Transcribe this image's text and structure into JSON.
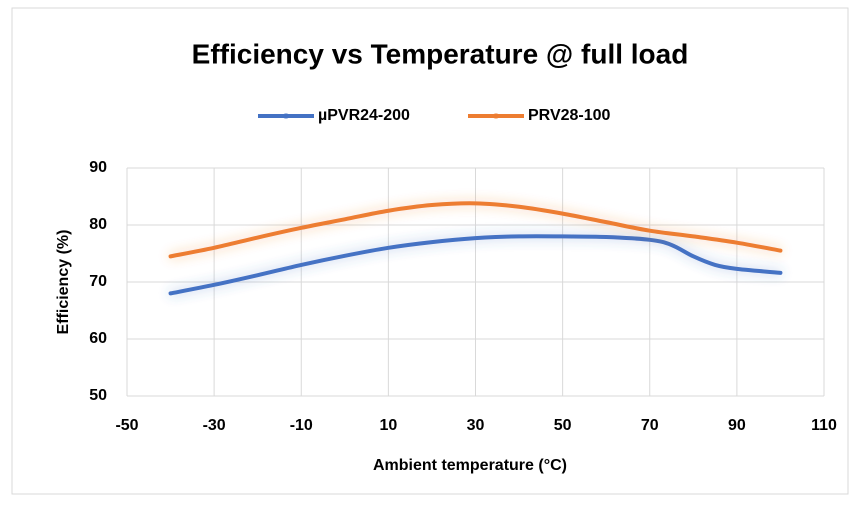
{
  "chart_data": {
    "type": "line",
    "title": "Efficiency vs Temperature @ full load",
    "x_label": "Ambient temperature (°C)",
    "y_label": "Efficiency (%)",
    "series": [
      {
        "name": "µPVR24-200",
        "color": "#4472c4",
        "x": [
          -40,
          -30,
          -20,
          -10,
          0,
          10,
          20,
          30,
          40,
          50,
          60,
          70,
          75,
          80,
          85,
          90,
          100
        ],
        "values": [
          68,
          69.5,
          71.2,
          73,
          74.6,
          76,
          77,
          77.7,
          78,
          78,
          77.9,
          77.4,
          76.5,
          74.5,
          73,
          72.3,
          71.6
        ]
      },
      {
        "name": "PRV28-100",
        "color": "#ed7d31",
        "x": [
          -40,
          -30,
          -20,
          -10,
          0,
          10,
          20,
          30,
          40,
          50,
          60,
          70,
          80,
          90,
          100
        ],
        "values": [
          74.5,
          76,
          77.8,
          79.5,
          81,
          82.5,
          83.5,
          83.8,
          83.2,
          82,
          80.5,
          79,
          78,
          76.9,
          75.5
        ]
      }
    ],
    "xlim": [
      -50,
      110
    ],
    "xticks": [
      -50,
      -30,
      -10,
      10,
      30,
      50,
      70,
      90,
      110
    ],
    "ylim": [
      50,
      90
    ],
    "yticks": [
      50,
      60,
      70,
      80,
      90
    ],
    "grid": true,
    "legend": "top"
  }
}
